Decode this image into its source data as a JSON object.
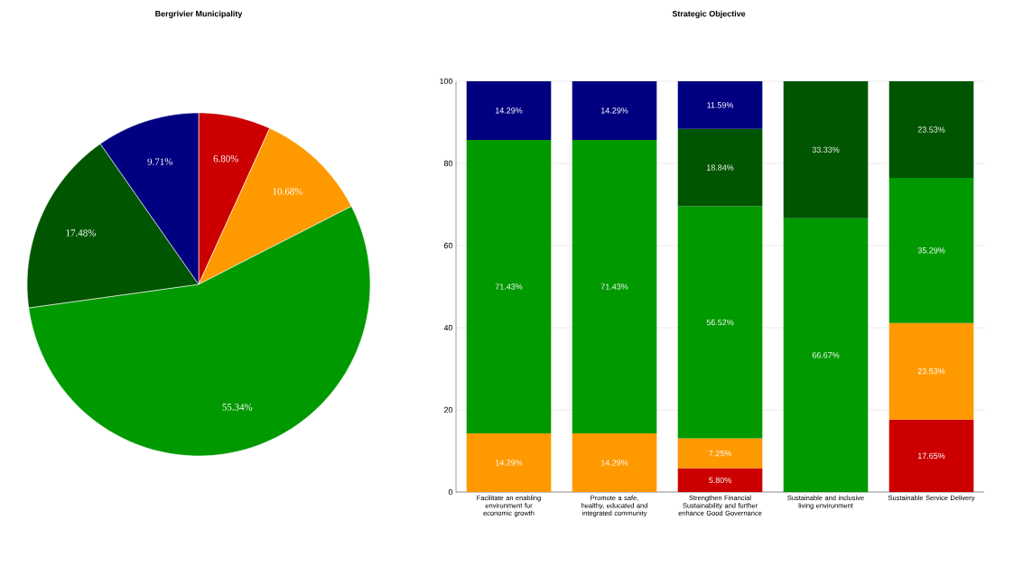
{
  "chart_data": [
    {
      "type": "pie",
      "title": "Bergrivier Municipality",
      "categories": [
        null,
        null,
        null,
        null,
        null
      ],
      "values": [
        6.8,
        10.68,
        55.34,
        17.48,
        9.71
      ],
      "colors": [
        "#cc0000",
        "#ff9900",
        "#009900",
        "#005500",
        "#000080"
      ],
      "value_labels": [
        "6.80%",
        "10.68%",
        "55.34%",
        "17.48%",
        "9.71%"
      ]
    },
    {
      "type": "bar",
      "title": "Strategic Objective",
      "stacked": true,
      "grid": "y",
      "categories": [
        "Facilitate an enabling environment for economic growth",
        "Promote a safe, healthy, educated and integrated community",
        "Strengthen Financial Sustainability and further enhance Good Governance",
        "Sustainable and inclusive living environment",
        "Sustainable Service Delivery"
      ],
      "ylim": [
        0,
        100
      ],
      "yticks": [
        0,
        20,
        40,
        60,
        80,
        100
      ],
      "series": [
        {
          "color": "#cc0000",
          "values": [
            null,
            null,
            5.8,
            null,
            17.65
          ],
          "value_labels": [
            null,
            null,
            "5.80%",
            null,
            "17.65%"
          ]
        },
        {
          "color": "#ff9900",
          "values": [
            14.29,
            14.29,
            7.25,
            null,
            23.53
          ],
          "value_labels": [
            "14.29%",
            "14.29%",
            "7.25%",
            null,
            "23.53%"
          ]
        },
        {
          "color": "#009900",
          "values": [
            71.43,
            71.43,
            56.52,
            66.67,
            35.29
          ],
          "value_labels": [
            "71.43%",
            "71.43%",
            "56.52%",
            "66.67%",
            "35.29%"
          ]
        },
        {
          "color": "#005500",
          "values": [
            null,
            null,
            18.84,
            33.33,
            23.53
          ],
          "value_labels": [
            null,
            null,
            "18.84%",
            "33.33%",
            "23.53%"
          ]
        },
        {
          "color": "#000080",
          "values": [
            14.29,
            14.29,
            11.59,
            null,
            null
          ],
          "value_labels": [
            "14.29%",
            "14.29%",
            "11.59%",
            null,
            null
          ]
        }
      ]
    }
  ]
}
